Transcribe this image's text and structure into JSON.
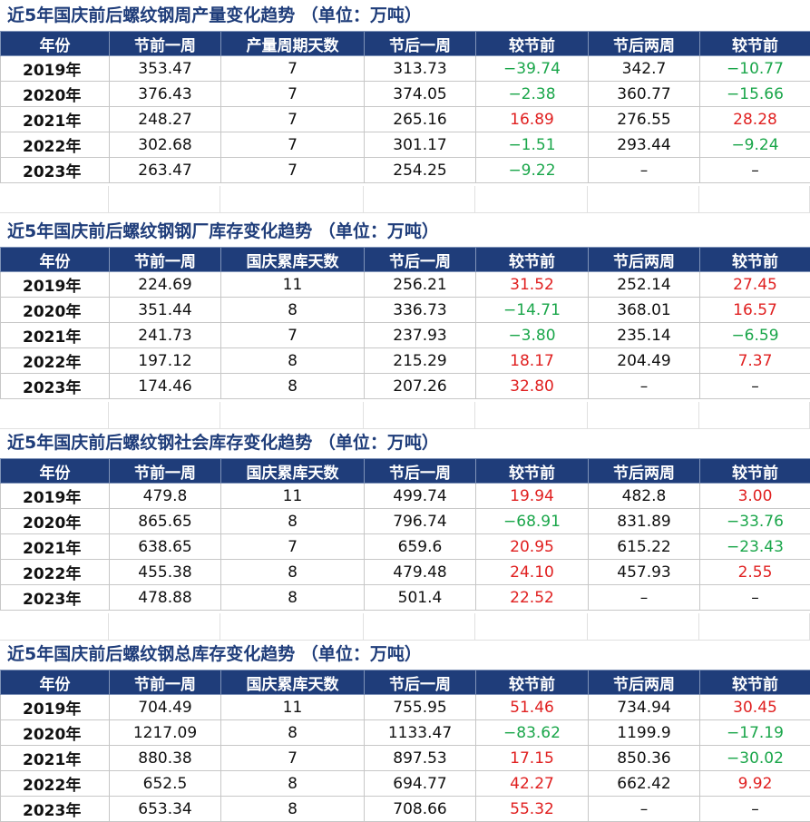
{
  "tables": [
    {
      "title": "近5年国庆前后螺纹钢周产量变化趋势 （单位：万吨）",
      "headers": [
        "年份",
        "节前一周",
        "产量周期天数",
        "节后一周",
        "较节前",
        "节后两周",
        "较节前"
      ],
      "rows": [
        [
          "2019年",
          "353.47",
          "7",
          "313.73",
          "−39.74",
          "342.7",
          "−10.77"
        ],
        [
          "2020年",
          "376.43",
          "7",
          "374.05",
          "−2.38",
          "360.77",
          "−15.66"
        ],
        [
          "2021年",
          "248.27",
          "7",
          "265.16",
          "16.89",
          "276.55",
          "28.28"
        ],
        [
          "2022年",
          "302.68",
          "7",
          "301.17",
          "−1.51",
          "293.44",
          "−9.24"
        ],
        [
          "2023年",
          "263.47",
          "7",
          "254.25",
          "−9.22",
          "–",
          "–"
        ]
      ]
    },
    {
      "title": "近5年国庆前后螺纹钢钢厂库存变化趋势 （单位：万吨）",
      "headers": [
        "年份",
        "节前一周",
        "国庆累库天数",
        "节后一周",
        "较节前",
        "节后两周",
        "较节前"
      ],
      "rows": [
        [
          "2019年",
          "224.69",
          "11",
          "256.21",
          "31.52",
          "252.14",
          "27.45"
        ],
        [
          "2020年",
          "351.44",
          "8",
          "336.73",
          "−14.71",
          "368.01",
          "16.57"
        ],
        [
          "2021年",
          "241.73",
          "7",
          "237.93",
          "−3.80",
          "235.14",
          "−6.59"
        ],
        [
          "2022年",
          "197.12",
          "8",
          "215.29",
          "18.17",
          "204.49",
          "7.37"
        ],
        [
          "2023年",
          "174.46",
          "8",
          "207.26",
          "32.80",
          "–",
          "–"
        ]
      ]
    },
    {
      "title": "近5年国庆前后螺纹钢社会库存变化趋势 （单位：万吨）",
      "headers": [
        "年份",
        "节前一周",
        "国庆累库天数",
        "节后一周",
        "较节前",
        "节后两周",
        "较节前"
      ],
      "rows": [
        [
          "2019年",
          "479.8",
          "11",
          "499.74",
          "19.94",
          "482.8",
          "3.00"
        ],
        [
          "2020年",
          "865.65",
          "8",
          "796.74",
          "−68.91",
          "831.89",
          "−33.76"
        ],
        [
          "2021年",
          "638.65",
          "7",
          "659.6",
          "20.95",
          "615.22",
          "−23.43"
        ],
        [
          "2022年",
          "455.38",
          "8",
          "479.48",
          "24.10",
          "457.93",
          "2.55"
        ],
        [
          "2023年",
          "478.88",
          "8",
          "501.4",
          "22.52",
          "–",
          "–"
        ]
      ]
    },
    {
      "title": "近5年国庆前后螺纹钢总库存变化趋势 （单位：万吨）",
      "headers": [
        "年份",
        "节前一周",
        "国庆累库天数",
        "节后一周",
        "较节前",
        "节后两周",
        "较节前"
      ],
      "rows": [
        [
          "2019年",
          "704.49",
          "11",
          "755.95",
          "51.46",
          "734.94",
          "30.45"
        ],
        [
          "2020年",
          "1217.09",
          "8",
          "1133.47",
          "−83.62",
          "1199.9",
          "−17.19"
        ],
        [
          "2021年",
          "880.38",
          "7",
          "897.53",
          "17.15",
          "850.36",
          "−30.02"
        ],
        [
          "2022年",
          "652.5",
          "8",
          "694.77",
          "42.27",
          "662.42",
          "9.92"
        ],
        [
          "2023年",
          "653.34",
          "8",
          "708.66",
          "55.32",
          "–",
          "–"
        ]
      ]
    }
  ],
  "colors": {
    "header_bg": "#1f3d7a",
    "title_text": "#1f3d7a",
    "negative": "#1aa64a",
    "positive": "#e02020"
  }
}
